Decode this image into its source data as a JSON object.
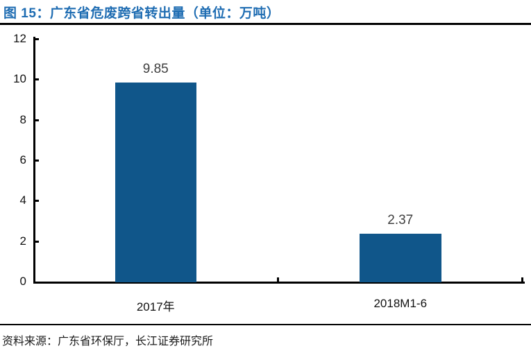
{
  "figure": {
    "title": "图 15：广东省危废跨省转出量（单位：万吨）",
    "source_note": "资料来源：广东省环保厅，长江证券研究所"
  },
  "colors": {
    "title_text": "#1e6cb2",
    "bar": "#10568a",
    "axis": "#000000",
    "value_label": "#3f3f3f",
    "rule": "#000000"
  },
  "chart_data": {
    "type": "bar",
    "title": "图 15：广东省危废跨省转出量（单位：万吨）",
    "categories": [
      "2017年",
      "2018M1-6"
    ],
    "values": [
      9.85,
      2.37
    ],
    "value_labels": [
      "9.85",
      "2.37"
    ],
    "xlabel": "",
    "ylabel": "",
    "ylim": [
      0,
      12
    ],
    "yticks": [
      0,
      2,
      4,
      6,
      8,
      10,
      12
    ],
    "grid": false,
    "legend_position": "none"
  }
}
